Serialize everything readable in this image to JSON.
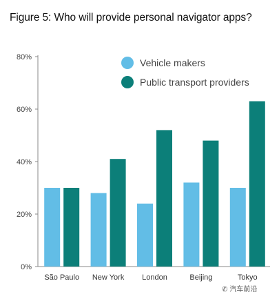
{
  "title": "Figure 5: Who will provide personal navigator apps?",
  "watermark": "汽车前沿",
  "chart_data": {
    "type": "bar",
    "categories": [
      "São Paulo",
      "New York",
      "London",
      "Beijing",
      "Tokyo"
    ],
    "series": [
      {
        "name": "Vehicle makers",
        "color": "#62bde6",
        "values": [
          30,
          28,
          24,
          32,
          30
        ]
      },
      {
        "name": "Public transport providers",
        "color": "#0c7f79",
        "values": [
          30,
          41,
          52,
          48,
          63
        ]
      }
    ],
    "ylim": [
      0,
      80
    ],
    "yticks": [
      0,
      20,
      40,
      60,
      80
    ],
    "ytick_labels": [
      "0%",
      "20%",
      "40%",
      "60%",
      "80%"
    ],
    "xlabel": "",
    "ylabel": "",
    "grid": false,
    "legend_position": "top-right"
  }
}
